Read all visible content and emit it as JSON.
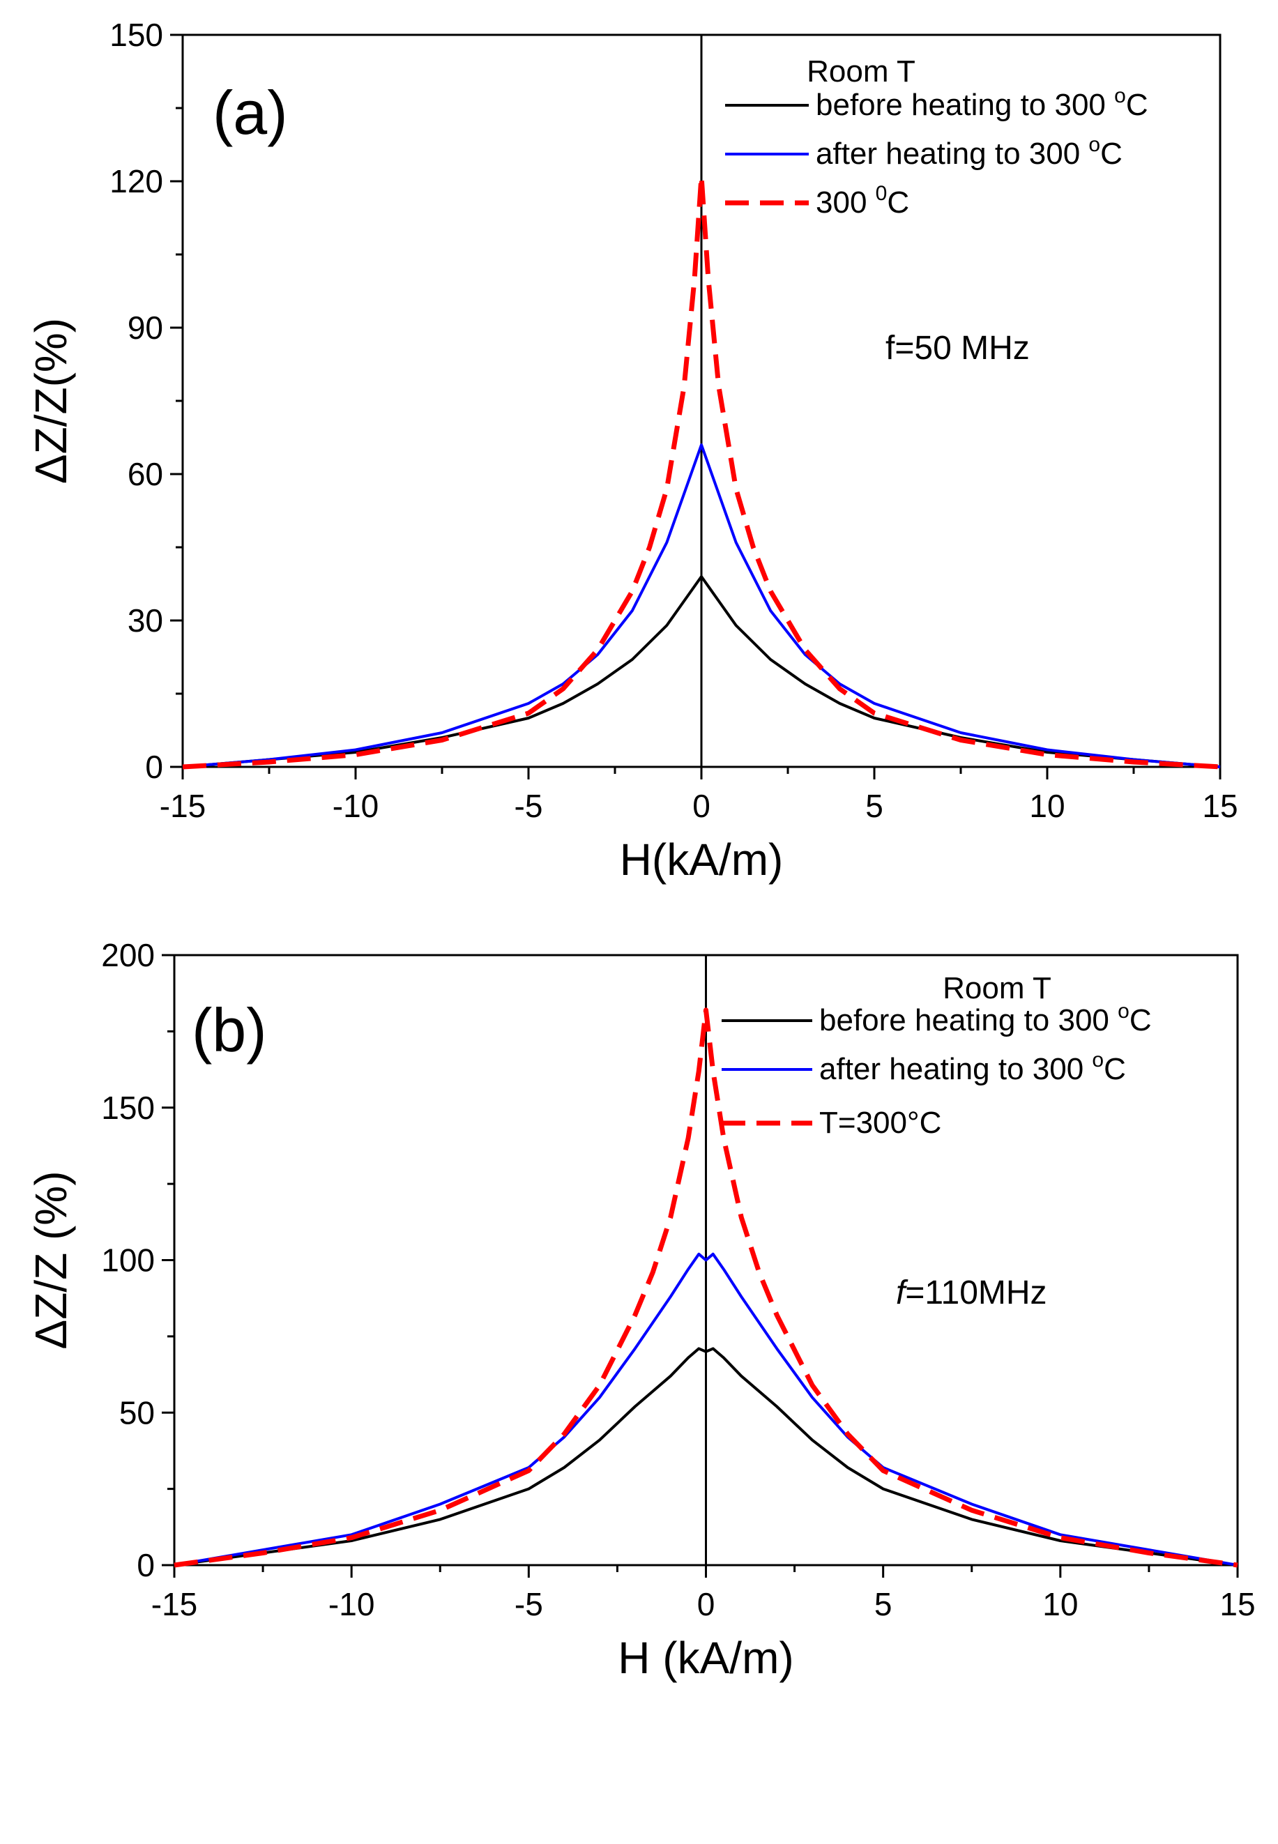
{
  "chart_data": [
    {
      "type": "line",
      "panel_label": "(a)",
      "xlabel": "H(kA/m)",
      "ylabel": "ΔZ/Z(%)",
      "xlim": [
        -15,
        15
      ],
      "ylim": [
        0,
        150
      ],
      "xticks": [
        -15,
        -10,
        -5,
        0,
        5,
        10,
        15
      ],
      "yticks": [
        0,
        30,
        60,
        90,
        120,
        150
      ],
      "legend_title": "Room T",
      "legend_placement": "top-right",
      "annotation": "f=50 MHz",
      "series": [
        {
          "name": "before heating to 300 °C",
          "legend_main": "before heating to 300 ",
          "legend_sup": "o",
          "legend_tail": "C",
          "color": "#000000",
          "dash": "solid",
          "x": [
            -15,
            -12.5,
            -10,
            -7.5,
            -5,
            -4,
            -3,
            -2,
            -1,
            -0.5,
            0,
            0.5,
            1,
            2,
            3,
            4,
            5,
            7.5,
            10,
            12.5,
            15
          ],
          "y": [
            0,
            1.5,
            3,
            6,
            10,
            13,
            17,
            22,
            29,
            34,
            39,
            34,
            29,
            22,
            17,
            13,
            10,
            6,
            3,
            1.5,
            0
          ]
        },
        {
          "name": "after heating to 300 °C",
          "legend_main": "after heating to 300 ",
          "legend_sup": "o",
          "legend_tail": "C",
          "color": "#0000ff",
          "dash": "solid",
          "x": [
            -15,
            -12.5,
            -10,
            -7.5,
            -5,
            -4,
            -3,
            -2,
            -1,
            -0.5,
            0,
            0.5,
            1,
            2,
            3,
            4,
            5,
            7.5,
            10,
            12.5,
            15
          ],
          "y": [
            0,
            1.5,
            3.5,
            7,
            13,
            17,
            23,
            32,
            46,
            56,
            66,
            56,
            46,
            32,
            23,
            17,
            13,
            7,
            3.5,
            1.5,
            0
          ]
        },
        {
          "name": "300 °C",
          "legend_main": "300 ",
          "legend_sup": "0",
          "legend_tail": "C",
          "color": "#ff0000",
          "dash": "dashed",
          "x": [
            -15,
            -12.5,
            -10,
            -7.5,
            -5,
            -4,
            -3,
            -2,
            -1.5,
            -1,
            -0.5,
            -0.2,
            0,
            0.2,
            0.5,
            1,
            1.5,
            2,
            3,
            4,
            5,
            7.5,
            10,
            12.5,
            15
          ],
          "y": [
            0,
            1,
            2.5,
            5.5,
            11,
            16,
            24,
            36,
            45,
            57,
            78,
            100,
            121,
            100,
            78,
            57,
            45,
            36,
            24,
            16,
            11,
            5.5,
            2.5,
            1,
            0
          ]
        }
      ]
    },
    {
      "type": "line",
      "panel_label": "(b)",
      "xlabel": "H (kA/m)",
      "ylabel": "ΔZ/Z (%)",
      "xlim": [
        -15,
        15
      ],
      "ylim": [
        0,
        200
      ],
      "xticks": [
        -15,
        -10,
        -5,
        0,
        5,
        10,
        15
      ],
      "yticks": [
        0,
        50,
        100,
        150,
        200
      ],
      "legend_title": "Room T",
      "legend_placement": "top-right",
      "annotation_italic": "f",
      "annotation_rest": "=110MHz",
      "series": [
        {
          "name": "before heating to 300 °C",
          "legend_main": "before heating to 300 ",
          "legend_sup": "o",
          "legend_tail": "C",
          "color": "#000000",
          "dash": "solid",
          "x": [
            -15,
            -12.5,
            -10,
            -7.5,
            -5,
            -4,
            -3,
            -2,
            -1,
            -0.5,
            -0.2,
            0,
            0.2,
            0.5,
            1,
            2,
            3,
            4,
            5,
            7.5,
            10,
            12.5,
            15
          ],
          "y": [
            0,
            4,
            8,
            15,
            25,
            32,
            41,
            52,
            62,
            68,
            71,
            70,
            71,
            68,
            62,
            52,
            41,
            32,
            25,
            15,
            8,
            4,
            0
          ]
        },
        {
          "name": "after heating to 300 °C",
          "legend_main": "after heating to 300 ",
          "legend_sup": "o",
          "legend_tail": "C",
          "color": "#0000ff",
          "dash": "solid",
          "x": [
            -15,
            -12.5,
            -10,
            -7.5,
            -5,
            -4,
            -3,
            -2,
            -1,
            -0.5,
            -0.2,
            0,
            0.2,
            0.5,
            1,
            2,
            3,
            4,
            5,
            7.5,
            10,
            12.5,
            15
          ],
          "y": [
            0,
            5,
            10,
            20,
            32,
            42,
            55,
            71,
            88,
            97,
            102,
            100,
            102,
            97,
            88,
            71,
            55,
            42,
            32,
            20,
            10,
            5,
            0
          ]
        },
        {
          "name": "T=300°C",
          "legend_main": "T=300°C",
          "legend_sup": "",
          "legend_tail": "",
          "color": "#ff0000",
          "dash": "dashed",
          "x": [
            -15,
            -12.5,
            -10,
            -7.5,
            -5,
            -4,
            -3,
            -2,
            -1.5,
            -1,
            -0.5,
            -0.2,
            0,
            0.2,
            0.5,
            1,
            1.5,
            2,
            3,
            4,
            5,
            7.5,
            10,
            12.5,
            15
          ],
          "y": [
            0,
            4,
            9,
            18,
            31,
            43,
            59,
            82,
            96,
            114,
            140,
            162,
            182,
            162,
            140,
            114,
            96,
            82,
            59,
            43,
            31,
            18,
            9,
            4,
            0
          ]
        }
      ]
    }
  ]
}
